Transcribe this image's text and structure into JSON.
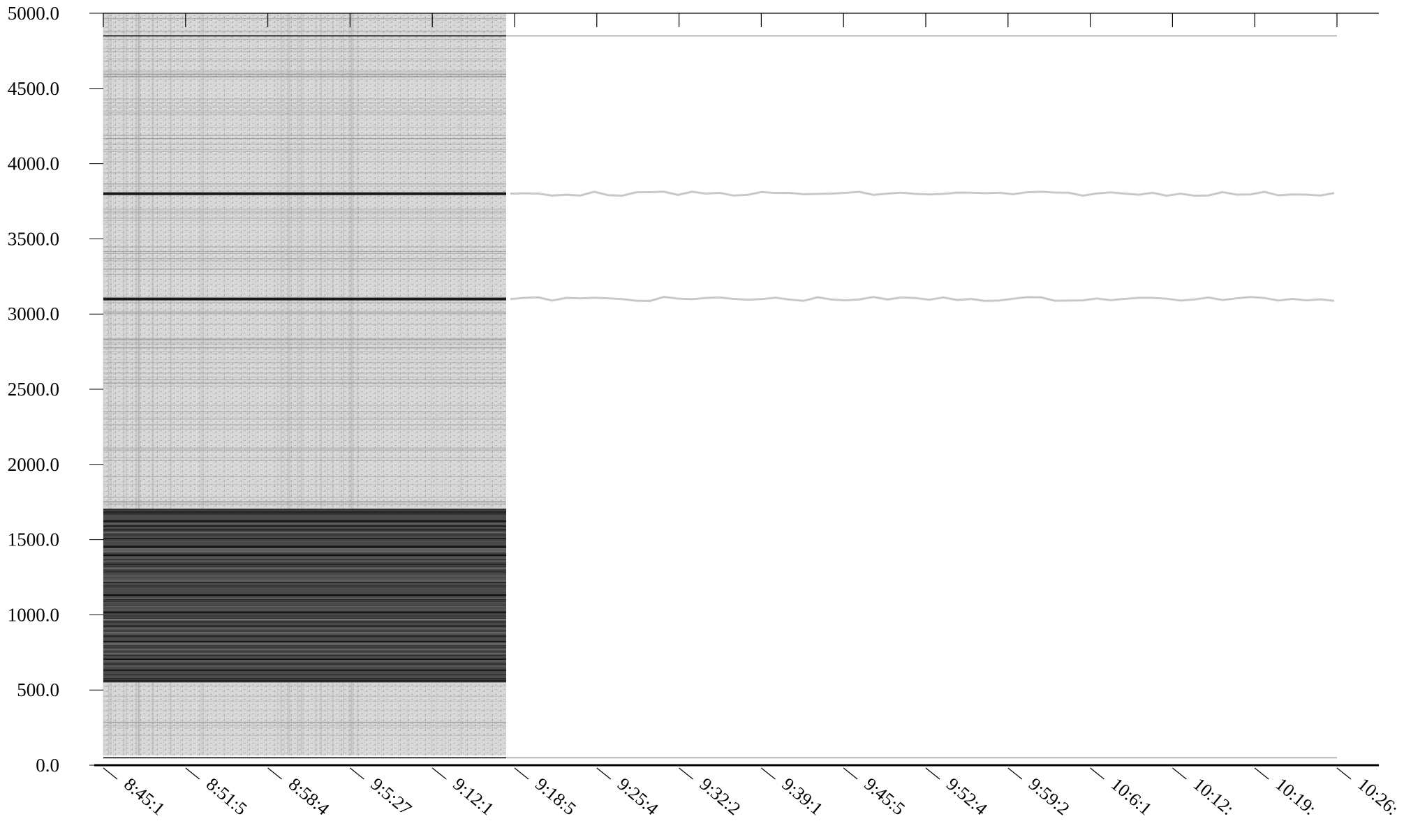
{
  "chart_data": {
    "type": "heatmap",
    "title": "",
    "xlabel": "",
    "ylabel": "",
    "colormap": "grayscale",
    "ylim": [
      0,
      5000
    ],
    "y_ticks": [
      "5000.0",
      "4500.0",
      "4000.0",
      "3500.0",
      "3000.0",
      "2500.0",
      "2000.0",
      "1500.0",
      "1000.0",
      "500.0",
      "0.0"
    ],
    "x_ticks": [
      "8:45:1",
      "8:51:5",
      "8:58:4",
      "9:5:27",
      "9:12:1",
      "9:18:5",
      "9:25:4",
      "9:32:2",
      "9:39:1",
      "9:45:5",
      "9:52:4",
      "9:59:2",
      "10:6:1",
      "10:12:",
      "10:19:",
      "10:26:"
    ],
    "recorded_segment": {
      "start": "8:45:1",
      "end": "9:18:5"
    },
    "features": [
      {
        "kind": "dark_band",
        "y_range": [
          550,
          1700
        ],
        "t_range": [
          "8:45:1",
          "9:18:5"
        ]
      },
      {
        "kind": "trace",
        "y": 3800,
        "t_range": [
          "8:45:1",
          "10:26:"
        ]
      },
      {
        "kind": "trace",
        "y": 3100,
        "t_range": [
          "8:45:1",
          "10:26:"
        ]
      },
      {
        "kind": "line",
        "y": 4850,
        "t_range": [
          "8:45:1",
          "10:26:"
        ]
      },
      {
        "kind": "line",
        "y": 50,
        "t_range": [
          "8:45:1",
          "10:26:"
        ]
      }
    ]
  }
}
